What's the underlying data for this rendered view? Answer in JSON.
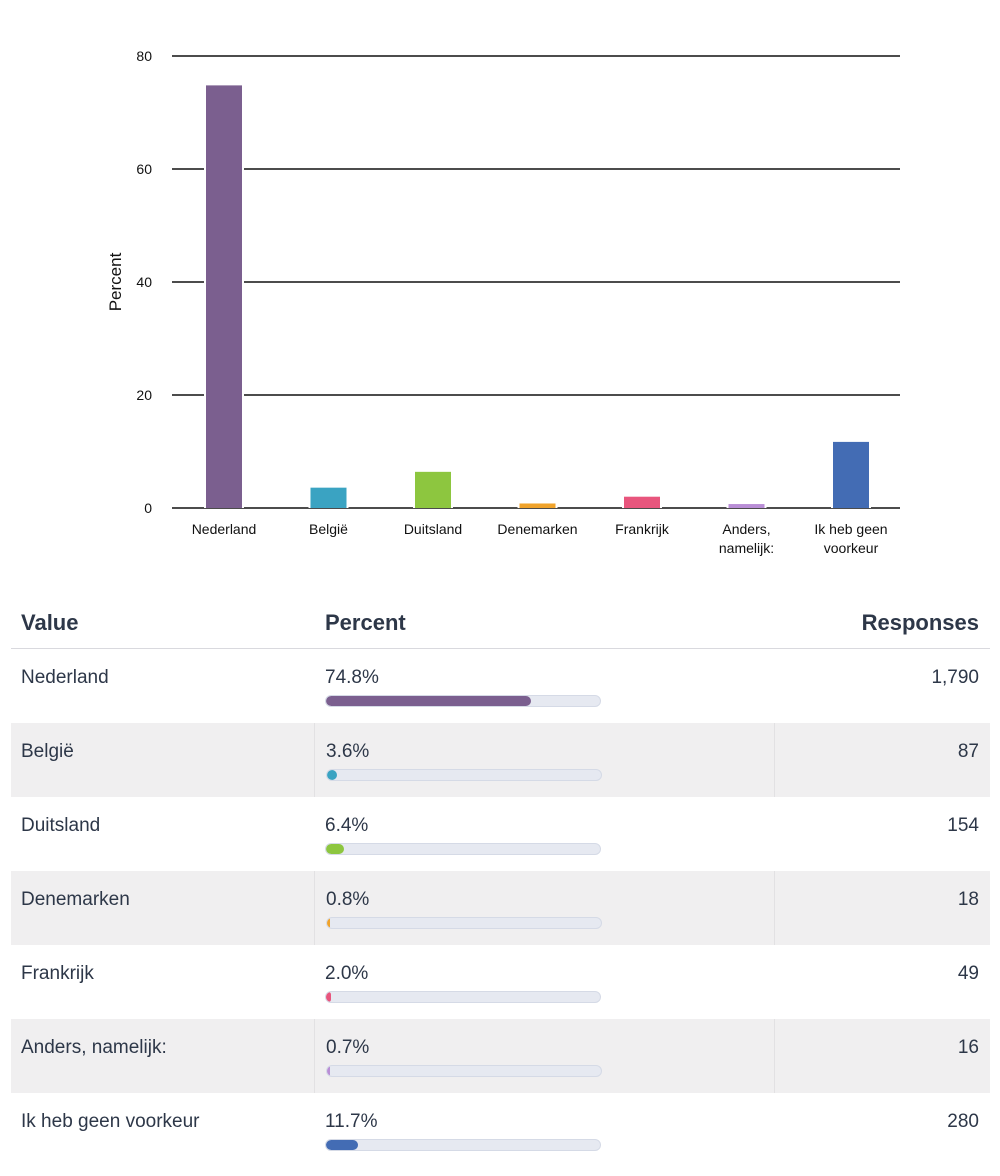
{
  "chart_data": {
    "type": "bar",
    "ylabel": "Percent",
    "xlabel": "",
    "ylim": [
      0,
      80
    ],
    "yticks": [
      0,
      20,
      40,
      60,
      80
    ],
    "grid": true,
    "categories": [
      [
        "Nederland"
      ],
      [
        "België"
      ],
      [
        "Duitsland"
      ],
      [
        "Denemarken"
      ],
      [
        "Frankrijk"
      ],
      [
        "Anders,",
        "namelijk:"
      ],
      [
        "Ik heb geen",
        "voorkeur"
      ]
    ],
    "values": [
      74.8,
      3.6,
      6.4,
      0.8,
      2.0,
      0.7,
      11.7
    ],
    "colors": [
      "#7b5f8f",
      "#3aa3c2",
      "#8dc63f",
      "#f0a32b",
      "#e8557d",
      "#b98ed6",
      "#436cb4"
    ]
  },
  "table": {
    "headers": {
      "value": "Value",
      "percent": "Percent",
      "responses": "Responses"
    },
    "rows": [
      {
        "value": "Nederland",
        "percent": "74.8%",
        "fraction": 0.748,
        "responses": "1,790",
        "color": "#7b5f8f"
      },
      {
        "value": "België",
        "percent": "3.6%",
        "fraction": 0.036,
        "responses": "87",
        "color": "#3aa3c2"
      },
      {
        "value": "Duitsland",
        "percent": "6.4%",
        "fraction": 0.064,
        "responses": "154",
        "color": "#8dc63f"
      },
      {
        "value": "Denemarken",
        "percent": "0.8%",
        "fraction": 0.008,
        "responses": "18",
        "color": "#f0a32b"
      },
      {
        "value": "Frankrijk",
        "percent": "2.0%",
        "fraction": 0.02,
        "responses": "49",
        "color": "#e8557d"
      },
      {
        "value": "Anders, namelijk:",
        "percent": "0.7%",
        "fraction": 0.007,
        "responses": "16",
        "color": "#b98ed6"
      },
      {
        "value": "Ik heb geen voorkeur",
        "percent": "11.7%",
        "fraction": 0.117,
        "responses": "280",
        "color": "#436cb4"
      }
    ]
  }
}
